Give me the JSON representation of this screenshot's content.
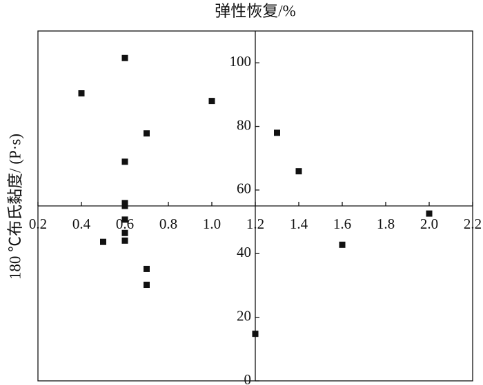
{
  "chart_data": {
    "type": "scatter",
    "title": "弹性恢复/%",
    "y_label": "180 ℃布氏黏度/ (P·s)",
    "color": "#111111",
    "xlim": [
      0.2,
      2.2
    ],
    "ylim": [
      0,
      110
    ],
    "x_cross": 1.2,
    "y_cross": 55,
    "xticks": [
      0.2,
      0.4,
      0.6,
      0.8,
      {
        "value": 1.0,
        "label": "1.0"
      },
      1.2,
      1.4,
      1.6,
      1.8,
      {
        "value": 2.0,
        "label": "2.0"
      },
      2.2
    ],
    "yticks": [
      0,
      20,
      40,
      60,
      80,
      100
    ],
    "x": [
      0.6,
      0.4,
      1.0,
      0.7,
      1.3,
      0.6,
      1.4,
      0.6,
      0.6,
      0.6,
      0.6,
      0.6,
      0.5,
      2.0,
      1.6,
      0.7,
      0.7,
      1.2
    ],
    "values": [
      101.5,
      90.4,
      88.0,
      77.8,
      78.0,
      68.9,
      65.9,
      55.9,
      55.0,
      50.7,
      46.5,
      44.1,
      43.7,
      52.6,
      42.8,
      35.2,
      30.2,
      14.8
    ]
  }
}
